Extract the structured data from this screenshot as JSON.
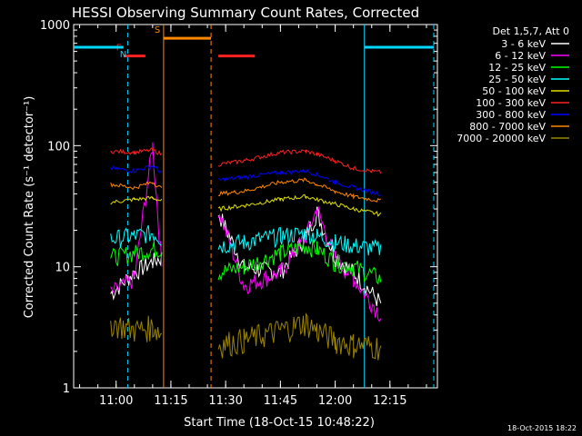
{
  "chart_data": {
    "type": "line",
    "title": "HESSI Observing Summary Count Rates, Corrected",
    "xlabel": "Start Time (18-Oct-15 10:48:22)",
    "ylabel": "Corrected Count Rate (s⁻¹ detector⁻¹)",
    "x_ticks": [
      "11:00",
      "11:15",
      "11:30",
      "11:45",
      "12:00",
      "12:15"
    ],
    "y_ticks": [
      "1",
      "10",
      "100",
      "1000"
    ],
    "y_scale": "log",
    "ylim": [
      1,
      1000
    ],
    "xlim": [
      "10:48:22",
      "12:28:00"
    ],
    "grid": false,
    "legend_title": "Det 1,5,7, Att 0",
    "legend_position": "top-right",
    "timestamp": "18-Oct-2015 18:22",
    "flags": [
      {
        "label": "F",
        "color": "#ff2020",
        "start": "11:02:00",
        "end": "11:08:00",
        "level": 550
      },
      {
        "label": "N",
        "color": "#00d8ff",
        "start": "10:48:22",
        "end": "11:02:00",
        "level": 650
      },
      {
        "label": "S",
        "color": "#ff8800",
        "start": "11:13:00",
        "end": "11:26:00",
        "level": 770
      },
      {
        "label": "",
        "color": "#ff2020",
        "start": "11:28:00",
        "end": "11:38:00",
        "level": 550
      },
      {
        "label": "",
        "color": "#00d8ff",
        "start": "12:08:00",
        "end": "12:27:00",
        "level": 650
      }
    ],
    "vertical_markers": [
      {
        "time": "11:03:10",
        "color": "#00d8ff",
        "style": "dashed"
      },
      {
        "time": "11:13:00",
        "color": "#ff8800",
        "style": "solid"
      },
      {
        "time": "11:26:00",
        "color": "#ff8800",
        "style": "dashed"
      },
      {
        "time": "12:08:00",
        "color": "#00d8ff",
        "style": "solid"
      },
      {
        "time": "12:27:00",
        "color": "#00d8ff",
        "style": "dashed"
      }
    ],
    "x": [
      "10:58:30",
      "11:05:00",
      "11:10:00",
      "11:12:30",
      "11:28:00",
      "11:35:00",
      "11:45:00",
      "11:52:00",
      "11:55:00",
      "12:00:00",
      "12:05:00",
      "12:12:30"
    ],
    "series": [
      {
        "name": "3 - 6 keV",
        "color": "#ffffff",
        "values": [
          6,
          9,
          11,
          12,
          28,
          10,
          9,
          18,
          28,
          12,
          9,
          5
        ]
      },
      {
        "name": "6 - 12 keV",
        "color": "#ff00ff",
        "values": [
          6,
          8,
          100,
          10,
          30,
          7,
          9,
          18,
          30,
          12,
          8,
          4
        ]
      },
      {
        "name": "12 - 25 keV",
        "color": "#00ff00",
        "values": [
          12,
          13,
          14,
          14,
          9,
          10,
          13,
          15,
          14,
          11,
          10,
          8
        ]
      },
      {
        "name": "25 - 50 keV",
        "color": "#00ffff",
        "values": [
          17,
          18,
          19,
          17,
          15,
          16,
          18,
          19,
          18,
          16,
          15,
          14
        ]
      },
      {
        "name": "50 - 100 keV",
        "color": "#e0e000",
        "values": [
          34,
          36,
          37,
          35,
          30,
          32,
          36,
          38,
          36,
          33,
          30,
          27
        ]
      },
      {
        "name": "100 - 300 keV",
        "color": "#ff2020",
        "values": [
          90,
          88,
          92,
          85,
          70,
          75,
          88,
          90,
          85,
          75,
          65,
          60
        ]
      },
      {
        "name": "300 - 800 keV",
        "color": "#0000ff",
        "values": [
          65,
          62,
          68,
          60,
          52,
          55,
          60,
          62,
          58,
          50,
          45,
          40
        ]
      },
      {
        "name": "800 - 7000 keV",
        "color": "#ff8800",
        "values": [
          48,
          45,
          50,
          44,
          40,
          42,
          50,
          52,
          48,
          42,
          38,
          35
        ]
      },
      {
        "name": "7000 - 20000 keV",
        "color": "#9a8400",
        "values": [
          3.5,
          3,
          3.2,
          2.8,
          2.3,
          2.5,
          3,
          3.5,
          3,
          2.5,
          2.3,
          2.2
        ]
      }
    ]
  }
}
